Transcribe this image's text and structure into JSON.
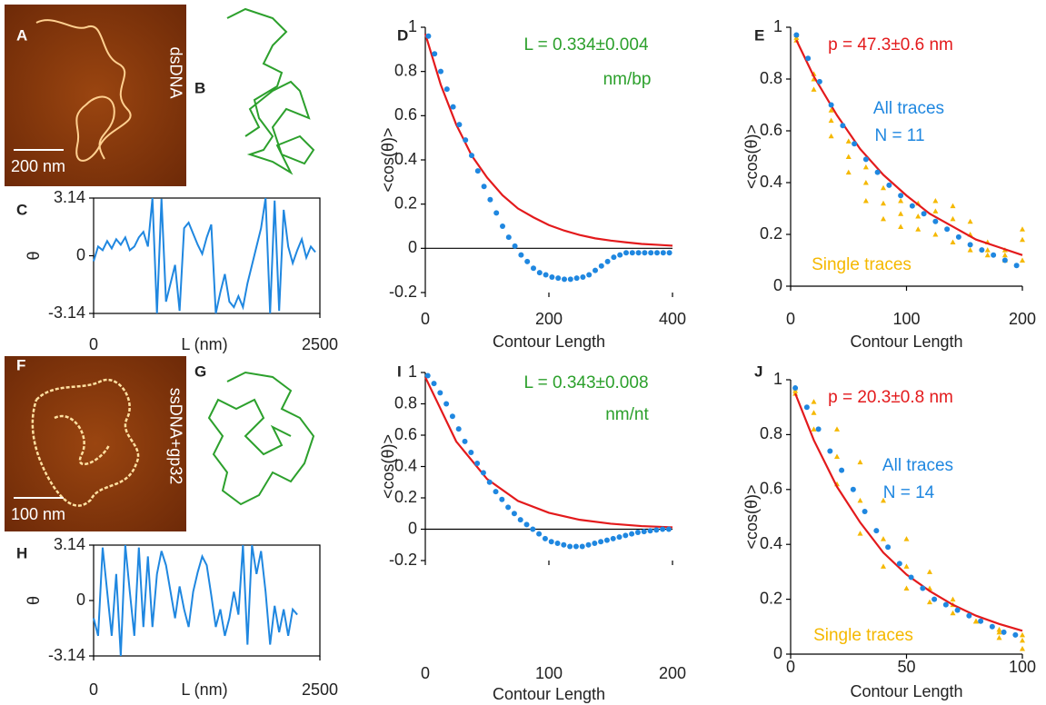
{
  "panel_labels": [
    "A",
    "B",
    "C",
    "D",
    "E",
    "F",
    "G",
    "H",
    "I",
    "J"
  ],
  "images": [
    {
      "label": "dsDNA",
      "scale": "200 nm"
    },
    {
      "label": "ssDNA+gp32",
      "scale": "100 nm"
    }
  ],
  "chart_data": [
    {
      "type": "line",
      "ylabel": "θ",
      "xlabel": "L (nm)",
      "xlim": [
        0,
        2500
      ],
      "xticks": [
        0,
        2500
      ],
      "ylim": [
        -3.14,
        3.14
      ],
      "yticks": [
        3.14,
        0,
        -3.14
      ],
      "series": [
        {
          "color": "#1f87e0",
          "style": "line",
          "x": [
            0,
            50,
            100,
            150,
            200,
            250,
            300,
            350,
            400,
            450,
            500,
            550,
            600,
            650,
            700,
            750,
            800,
            850,
            900,
            950,
            1000,
            1050,
            1100,
            1150,
            1200,
            1250,
            1300,
            1350,
            1400,
            1450,
            1500,
            1550,
            1600,
            1650,
            1700,
            1750,
            1800,
            1850,
            1900,
            1950,
            2000,
            2050,
            2100,
            2150,
            2200,
            2250,
            2300,
            2350,
            2400,
            2450
          ],
          "values": [
            -0.3,
            0.5,
            0.3,
            0.8,
            0.4,
            0.9,
            0.6,
            1.0,
            0.3,
            0.5,
            1.0,
            1.3,
            0.5,
            3.14,
            -3.14,
            3.1,
            -2.5,
            -1.5,
            -0.5,
            -3.0,
            1.5,
            1.8,
            1.2,
            0.6,
            0.1,
            1.0,
            1.7,
            -3.14,
            -2.0,
            -1.0,
            -2.5,
            -2.8,
            -2.2,
            -2.8,
            -1.5,
            -0.5,
            0.5,
            1.5,
            3.14,
            -3.14,
            3.0,
            -3.0,
            2.5,
            0.5,
            -0.4,
            0.3,
            0.9,
            -0.1,
            0.5,
            0.2
          ]
        }
      ]
    },
    {
      "type": "line",
      "ylabel": "θ",
      "xlabel": "L (nm)",
      "xlim": [
        0,
        2500
      ],
      "xticks": [
        0,
        2500
      ],
      "ylim": [
        -3.14,
        3.14
      ],
      "yticks": [
        3.14,
        0,
        -3.14
      ],
      "series": [
        {
          "color": "#1f87e0",
          "style": "line",
          "x": [
            0,
            50,
            100,
            150,
            200,
            250,
            300,
            350,
            400,
            450,
            500,
            550,
            600,
            650,
            700,
            750,
            800,
            850,
            900,
            950,
            1000,
            1050,
            1100,
            1150,
            1200,
            1250,
            1300,
            1350,
            1400,
            1450,
            1500,
            1550,
            1600,
            1650,
            1700,
            1750,
            1800,
            1850,
            1900,
            1950,
            2000,
            2050,
            2100,
            2150,
            2200,
            2250
          ],
          "values": [
            -1.0,
            -2.0,
            3.0,
            0.5,
            -2.0,
            1.5,
            -3.14,
            3.14,
            0.5,
            -2.0,
            3.0,
            -1.5,
            2.5,
            -1.5,
            1.5,
            2.8,
            2.0,
            0.5,
            -1.0,
            0.8,
            -0.5,
            -1.5,
            0.5,
            1.6,
            2.5,
            2.0,
            0.3,
            -1.5,
            -0.5,
            -2.0,
            -1.0,
            0.5,
            -0.8,
            3.14,
            -2.5,
            3.14,
            1.5,
            2.8,
            0.5,
            -2.5,
            -0.3,
            -1.8,
            -0.5,
            -2.0,
            -0.5,
            -0.8
          ]
        }
      ]
    },
    {
      "type": "scatter",
      "ylabel": "<cos(θ)>",
      "xlabel": "Contour Length",
      "xlim": [
        0,
        400
      ],
      "xticks": [
        0,
        200,
        400
      ],
      "ylim": [
        -0.2,
        1
      ],
      "yticks": [
        -0.2,
        0,
        0.2,
        0.4,
        0.6,
        0.8,
        1
      ],
      "annotations": [
        {
          "text": "L = 0.334±0.004",
          "color": "#2ca02c"
        },
        {
          "text": "nm/bp",
          "color": "#2ca02c"
        }
      ],
      "series": [
        {
          "color": "#e31a1c",
          "style": "line",
          "x": [
            0,
            25,
            50,
            75,
            100,
            125,
            150,
            175,
            200,
            225,
            250,
            275,
            300,
            325,
            350,
            375,
            400
          ],
          "values": [
            0.97,
            0.74,
            0.56,
            0.42,
            0.32,
            0.24,
            0.18,
            0.14,
            0.105,
            0.08,
            0.06,
            0.045,
            0.035,
            0.027,
            0.02,
            0.016,
            0.012
          ]
        },
        {
          "color": "#1f87e0",
          "style": "circle",
          "x": [
            5,
            15,
            25,
            35,
            45,
            55,
            65,
            75,
            85,
            95,
            105,
            115,
            125,
            135,
            145,
            155,
            165,
            175,
            185,
            195,
            205,
            215,
            225,
            235,
            245,
            255,
            265,
            275,
            285,
            295,
            305,
            315,
            325,
            335,
            345,
            355,
            365,
            375,
            385,
            395
          ],
          "values": [
            0.96,
            0.88,
            0.8,
            0.72,
            0.64,
            0.56,
            0.49,
            0.42,
            0.35,
            0.28,
            0.22,
            0.16,
            0.1,
            0.05,
            0.01,
            -0.03,
            -0.06,
            -0.09,
            -0.11,
            -0.12,
            -0.13,
            -0.135,
            -0.14,
            -0.14,
            -0.135,
            -0.13,
            -0.12,
            -0.1,
            -0.08,
            -0.06,
            -0.04,
            -0.03,
            -0.02,
            -0.02,
            -0.02,
            -0.02,
            -0.02,
            -0.02,
            -0.02,
            -0.02
          ]
        }
      ]
    },
    {
      "type": "scatter",
      "ylabel": "<cos(θ)>",
      "xlabel": "Contour Length",
      "xlim": [
        0,
        200
      ],
      "xticks": [
        0,
        100,
        200
      ],
      "ylim": [
        0,
        1
      ],
      "yticks": [
        0,
        0.2,
        0.4,
        0.6,
        0.8,
        1
      ],
      "annotations": [
        {
          "text": "p = 47.3±0.6 nm",
          "color": "#e31a1c"
        },
        {
          "text": "All traces",
          "color": "#1f87e0"
        },
        {
          "text": "N = 11",
          "color": "#1f87e0"
        },
        {
          "text": "Single traces",
          "color": "#f5b800"
        }
      ],
      "series": [
        {
          "color": "#f5b800",
          "style": "triangle",
          "x": [
            5,
            20,
            35,
            50,
            65,
            80,
            95,
            110,
            125,
            140,
            155,
            170,
            185,
            200
          ],
          "values": [
            0.97,
            0.82,
            0.68,
            0.56,
            0.46,
            0.38,
            0.33,
            0.32,
            0.33,
            0.31,
            0.25,
            0.17,
            0.12,
            0.1
          ]
        },
        {
          "color": "#f5b800",
          "style": "triangle",
          "x": [
            5,
            20,
            35,
            50,
            65,
            80,
            95,
            110,
            125,
            140,
            155,
            170,
            185,
            200
          ],
          "values": [
            0.96,
            0.8,
            0.64,
            0.5,
            0.4,
            0.32,
            0.28,
            0.27,
            0.29,
            0.26,
            0.2,
            0.14,
            0.1,
            0.18
          ]
        },
        {
          "color": "#f5b800",
          "style": "triangle",
          "x": [
            5,
            20,
            35,
            50,
            65,
            80,
            95,
            110,
            125,
            140,
            155,
            170,
            185,
            200
          ],
          "values": [
            0.95,
            0.76,
            0.58,
            0.44,
            0.33,
            0.26,
            0.23,
            0.22,
            0.2,
            0.17,
            0.14,
            0.12,
            0.14,
            0.22
          ]
        },
        {
          "color": "#e31a1c",
          "style": "line",
          "x": [
            5,
            20,
            40,
            60,
            80,
            100,
            120,
            140,
            160,
            180,
            200
          ],
          "values": [
            0.95,
            0.81,
            0.66,
            0.53,
            0.43,
            0.35,
            0.28,
            0.23,
            0.18,
            0.15,
            0.12
          ]
        },
        {
          "color": "#1f87e0",
          "style": "circle",
          "x": [
            5,
            15,
            25,
            35,
            45,
            55,
            65,
            75,
            85,
            95,
            105,
            115,
            125,
            135,
            145,
            155,
            165,
            175,
            185,
            195
          ],
          "values": [
            0.97,
            0.88,
            0.79,
            0.7,
            0.62,
            0.55,
            0.49,
            0.44,
            0.39,
            0.35,
            0.31,
            0.28,
            0.25,
            0.22,
            0.19,
            0.16,
            0.14,
            0.12,
            0.1,
            0.08
          ]
        }
      ]
    },
    {
      "type": "scatter",
      "ylabel": "<cos(θ)>",
      "xlabel": "Contour Length",
      "xlim": [
        0,
        200
      ],
      "xticks": [
        0,
        100,
        200
      ],
      "ylim": [
        -0.2,
        1
      ],
      "yticks": [
        -0.2,
        0,
        0.2,
        0.4,
        0.6,
        0.8,
        1
      ],
      "annotations": [
        {
          "text": "L = 0.343±0.008",
          "color": "#2ca02c"
        },
        {
          "text": "nm/nt",
          "color": "#2ca02c"
        }
      ],
      "series": [
        {
          "color": "#e31a1c",
          "style": "line",
          "x": [
            0,
            25,
            50,
            75,
            100,
            125,
            150,
            175,
            200
          ],
          "values": [
            0.97,
            0.56,
            0.32,
            0.18,
            0.105,
            0.06,
            0.035,
            0.02,
            0.012
          ]
        },
        {
          "color": "#1f87e0",
          "style": "circle",
          "x": [
            2,
            7,
            12,
            17,
            22,
            27,
            32,
            37,
            42,
            47,
            52,
            57,
            62,
            67,
            72,
            77,
            82,
            87,
            92,
            97,
            102,
            107,
            112,
            117,
            122,
            127,
            132,
            137,
            142,
            147,
            152,
            157,
            162,
            167,
            172,
            177,
            182,
            187,
            192,
            197
          ],
          "values": [
            0.98,
            0.93,
            0.87,
            0.8,
            0.72,
            0.64,
            0.56,
            0.49,
            0.42,
            0.36,
            0.3,
            0.24,
            0.19,
            0.14,
            0.1,
            0.06,
            0.03,
            0.0,
            -0.03,
            -0.06,
            -0.08,
            -0.09,
            -0.1,
            -0.11,
            -0.11,
            -0.11,
            -0.1,
            -0.09,
            -0.08,
            -0.07,
            -0.06,
            -0.05,
            -0.04,
            -0.03,
            -0.02,
            -0.015,
            -0.01,
            -0.005,
            0.0,
            0.0
          ]
        }
      ]
    },
    {
      "type": "scatter",
      "ylabel": "<cos(θ)>",
      "xlabel": "Contour Length",
      "xlim": [
        0,
        100
      ],
      "xticks": [
        0,
        50,
        100
      ],
      "ylim": [
        0,
        1
      ],
      "yticks": [
        0,
        0.2,
        0.4,
        0.6,
        0.8,
        1
      ],
      "annotations": [
        {
          "text": "p = 20.3±0.8 nm",
          "color": "#e31a1c"
        },
        {
          "text": "All traces",
          "color": "#1f87e0"
        },
        {
          "text": "N = 14",
          "color": "#1f87e0"
        },
        {
          "text": "Single traces",
          "color": "#f5b800"
        }
      ],
      "series": [
        {
          "color": "#f5b800",
          "style": "triangle",
          "x": [
            2,
            10,
            20,
            30,
            40,
            50,
            60,
            70,
            80,
            90,
            100
          ],
          "values": [
            0.97,
            0.92,
            0.82,
            0.7,
            0.56,
            0.42,
            0.3,
            0.2,
            0.12,
            0.06,
            0.02
          ]
        },
        {
          "color": "#f5b800",
          "style": "triangle",
          "x": [
            2,
            10,
            20,
            30,
            40,
            50,
            60,
            70,
            80,
            90,
            100
          ],
          "values": [
            0.96,
            0.88,
            0.72,
            0.56,
            0.42,
            0.32,
            0.24,
            0.18,
            0.12,
            0.08,
            0.05
          ]
        },
        {
          "color": "#f5b800",
          "style": "triangle",
          "x": [
            2,
            10,
            20,
            30,
            40,
            50,
            60,
            70,
            80,
            90,
            100
          ],
          "values": [
            0.95,
            0.82,
            0.62,
            0.44,
            0.32,
            0.24,
            0.19,
            0.15,
            0.12,
            0.09,
            0.07
          ]
        },
        {
          "color": "#e31a1c",
          "style": "line",
          "x": [
            2,
            10,
            20,
            30,
            40,
            50,
            60,
            70,
            80,
            90,
            100
          ],
          "values": [
            0.95,
            0.78,
            0.61,
            0.48,
            0.37,
            0.29,
            0.23,
            0.18,
            0.14,
            0.11,
            0.085
          ]
        },
        {
          "color": "#1f87e0",
          "style": "circle",
          "x": [
            2,
            7,
            12,
            17,
            22,
            27,
            32,
            37,
            42,
            47,
            52,
            57,
            62,
            67,
            72,
            77,
            82,
            87,
            92,
            97
          ],
          "values": [
            0.97,
            0.9,
            0.82,
            0.74,
            0.67,
            0.6,
            0.52,
            0.45,
            0.39,
            0.33,
            0.28,
            0.24,
            0.2,
            0.18,
            0.16,
            0.14,
            0.12,
            0.1,
            0.08,
            0.07
          ]
        }
      ]
    }
  ]
}
